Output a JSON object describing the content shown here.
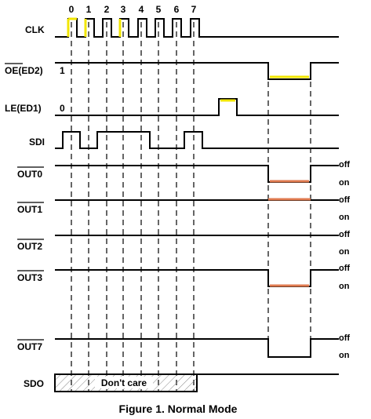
{
  "clock_numbers": [
    "0",
    "1",
    "2",
    "3",
    "4",
    "5",
    "6",
    "7"
  ],
  "signals": {
    "clk": "CLK",
    "oe": "OE(ED2)",
    "oe_level": "1",
    "le": "LE(ED1)",
    "le_level": "0",
    "sdi": "SDI",
    "out0": "OUT0",
    "out1": "OUT1",
    "out2": "OUT2",
    "out3": "OUT3",
    "out7": "OUT7",
    "sdo": "SDO"
  },
  "states": {
    "off": "off",
    "on": "on"
  },
  "sdo_text": "Don't care",
  "caption": "Figure 1.  Normal Mode",
  "colors": {
    "yellow": "#f2e600",
    "orange": "#e07b50",
    "black": "#000000"
  }
}
